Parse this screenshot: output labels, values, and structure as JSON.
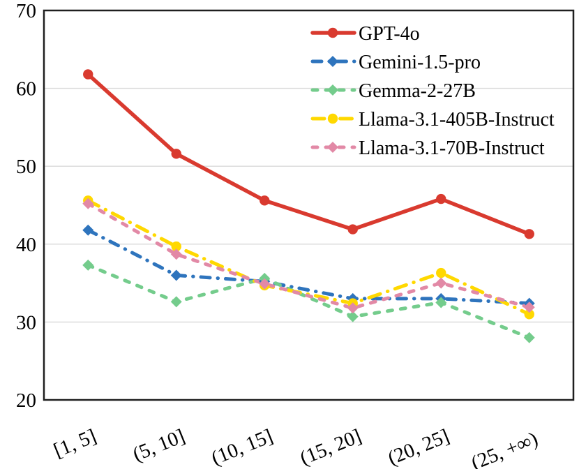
{
  "chart_data": {
    "type": "line",
    "title": "",
    "xlabel": "",
    "ylabel": "",
    "categories": [
      "[1, 5]",
      "(5, 10]",
      "(10, 15]",
      "(15, 20]",
      "(20, 25]",
      "(25, +∞)"
    ],
    "series": [
      {
        "name": "GPT-4o",
        "color": "#d93a2f",
        "dash": "solid",
        "marker": "circle",
        "values": [
          61.8,
          51.6,
          45.6,
          41.9,
          45.8,
          41.3
        ]
      },
      {
        "name": "Gemini-1.5-pro",
        "color": "#2e74bd",
        "dash": "dash-dot",
        "marker": "diamond",
        "values": [
          41.8,
          36.0,
          35.2,
          33.0,
          33.0,
          32.4
        ]
      },
      {
        "name": "Gemma-2-27B",
        "color": "#74cc8c",
        "dash": "dash",
        "marker": "diamond",
        "values": [
          37.3,
          32.6,
          35.6,
          30.7,
          32.5,
          28.0
        ]
      },
      {
        "name": "Llama-3.1-405B-Instruct",
        "color": "#ffd800",
        "dash": "longdash-dot",
        "marker": "circle",
        "values": [
          45.6,
          39.7,
          34.7,
          32.4,
          36.3,
          31.0
        ]
      },
      {
        "name": "Llama-3.1-70B-Instruct",
        "color": "#e289a6",
        "dash": "dash",
        "marker": "diamond",
        "values": [
          45.2,
          38.7,
          34.9,
          31.8,
          35.0,
          31.9
        ]
      }
    ],
    "ylim": [
      20,
      70
    ],
    "y_ticks": [
      20,
      30,
      40,
      50,
      60,
      70
    ],
    "y_tick_labels_top_to_bottom": [
      "70",
      "60",
      "50",
      "40",
      "30",
      "20"
    ],
    "grid": "horizontal",
    "legend_position": "top-right-inside"
  },
  "colors": {
    "grid": "#d9d9d9",
    "plot_border": "#1f1f1f",
    "text": "#000000",
    "background": "#ffffff"
  }
}
